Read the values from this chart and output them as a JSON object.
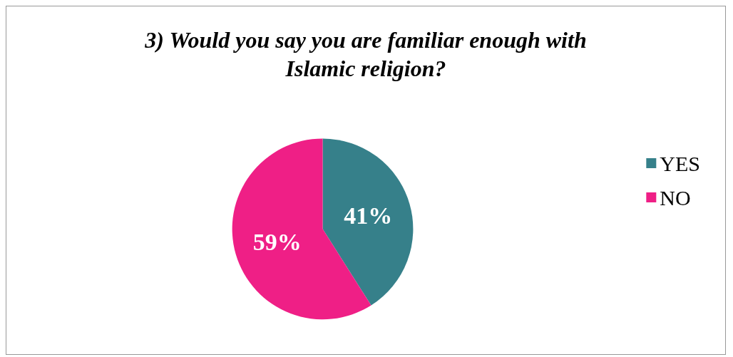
{
  "chart_data": {
    "type": "pie",
    "title": "3) Would you say you are familiar enough with\nIslamic religion?",
    "categories": [
      "YES",
      "NO"
    ],
    "values": [
      41,
      59
    ],
    "colors": [
      "#36808a",
      "#ef1f86"
    ],
    "value_labels": [
      "41%",
      "59%"
    ],
    "legend": "right"
  }
}
